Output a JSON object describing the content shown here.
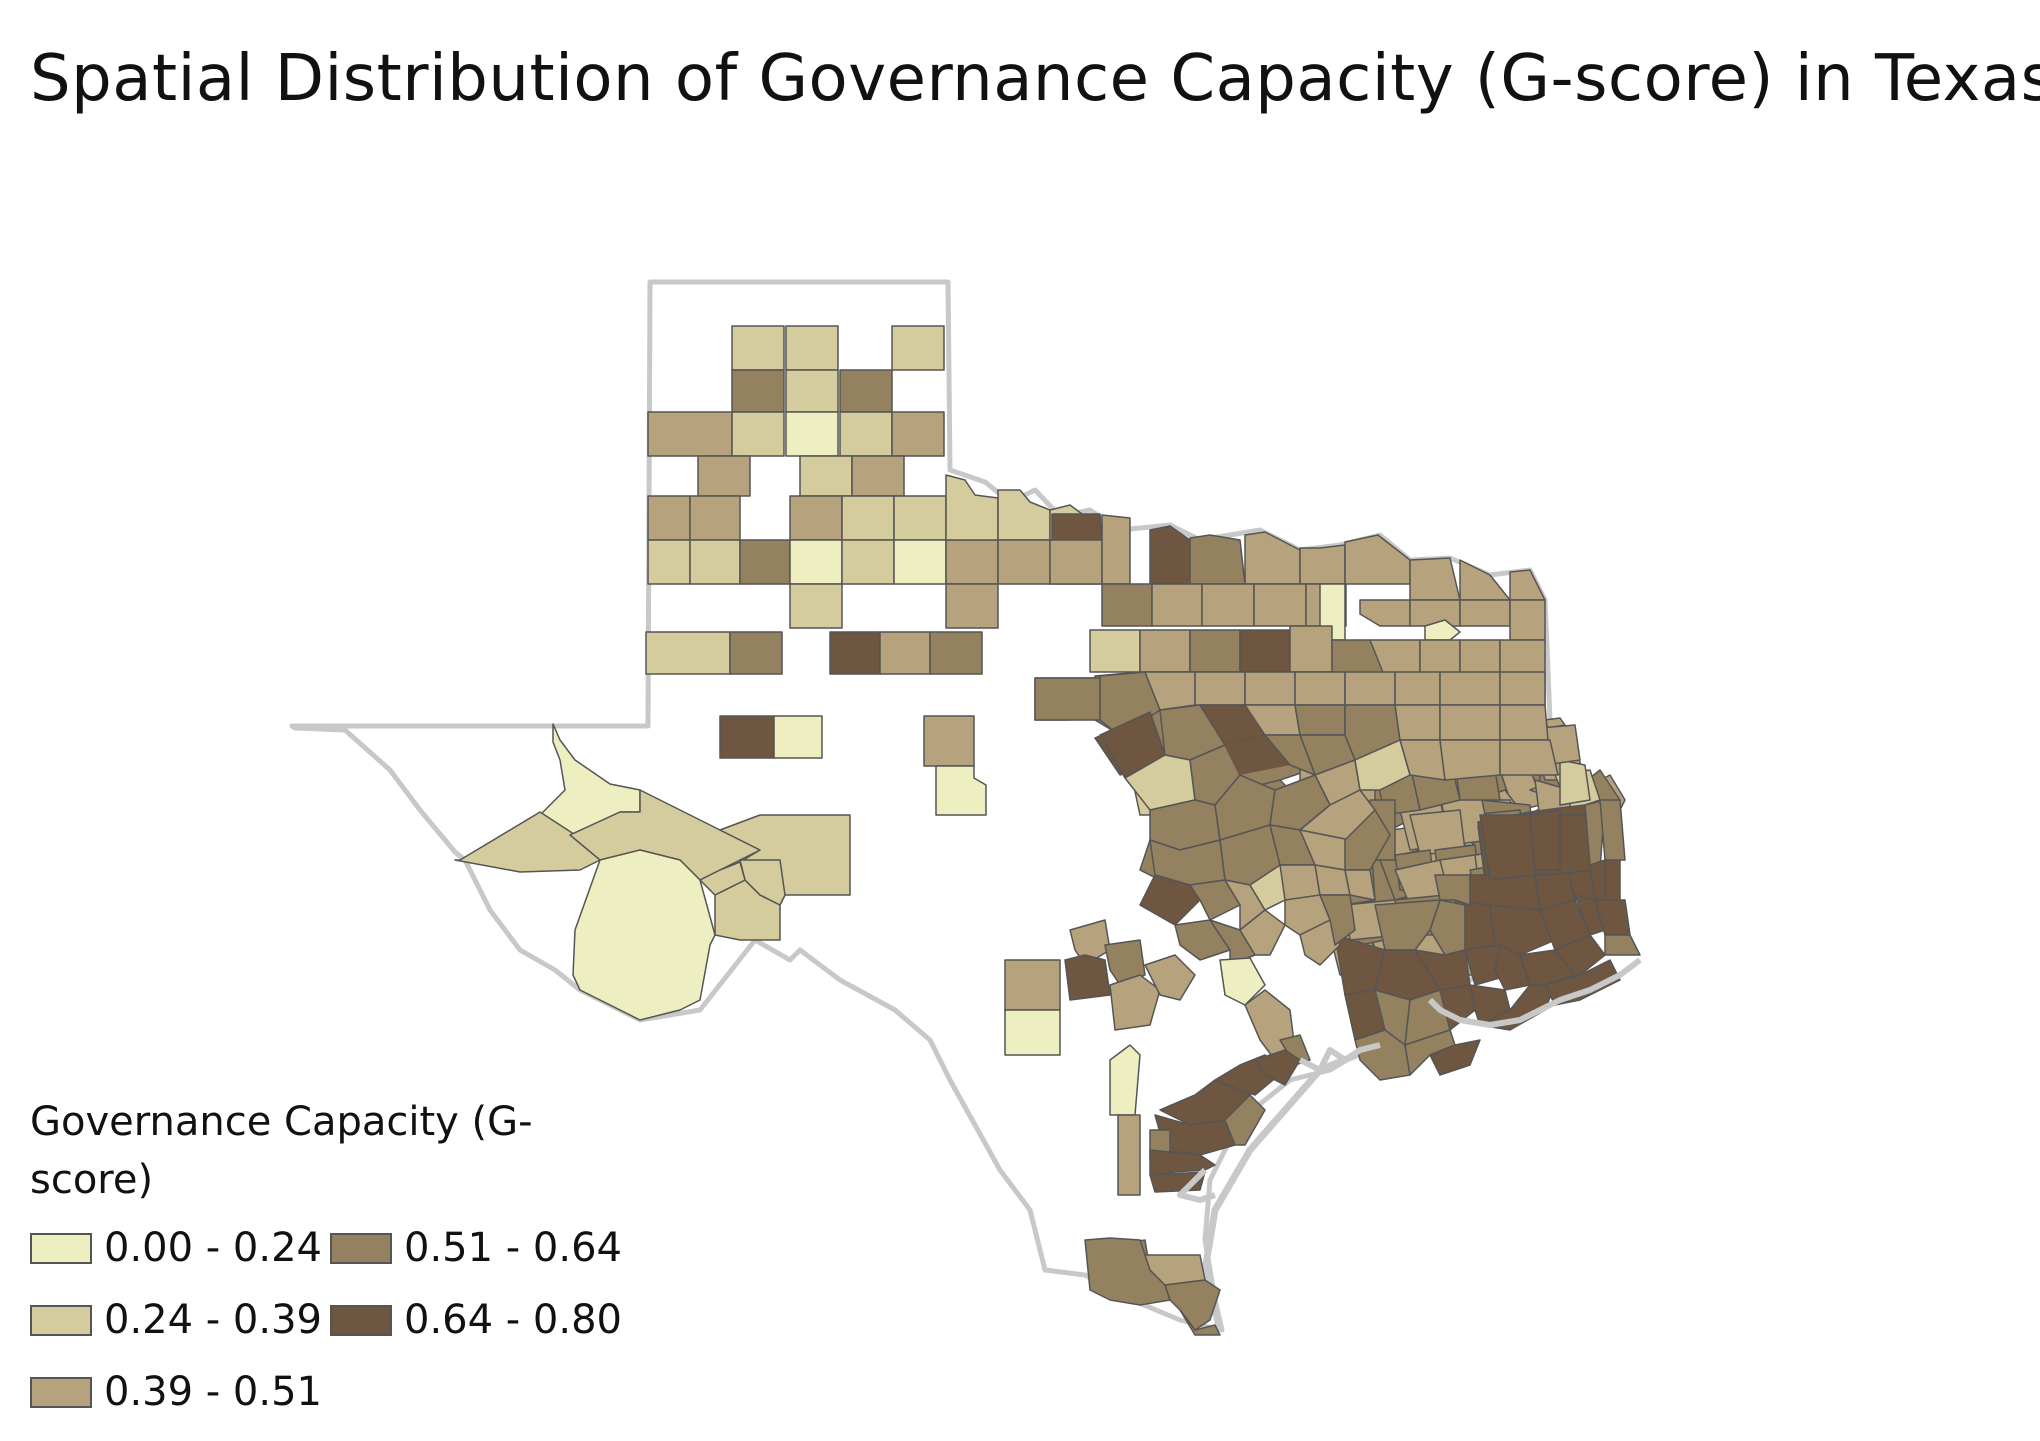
{
  "title": "Spatial Distribution of Governance Capacity (G-score) in Texas",
  "legend": {
    "title": "Governance Capacity (G-score)",
    "classes": [
      {
        "label": "0.00 - 0.24",
        "color": "#eeefc0"
      },
      {
        "label": "0.24 - 0.39",
        "color": "#d5cc9e"
      },
      {
        "label": "0.39 - 0.51",
        "color": "#b6a37d"
      },
      {
        "label": "0.51 - 0.64",
        "color": "#938160"
      },
      {
        "label": "0.64 - 0.80",
        "color": "#6e5640"
      }
    ]
  },
  "colors": {
    "state_outline": "#c8c8c8",
    "county_border": "#555555",
    "gulf_coast": "#c8c8c8"
  }
}
